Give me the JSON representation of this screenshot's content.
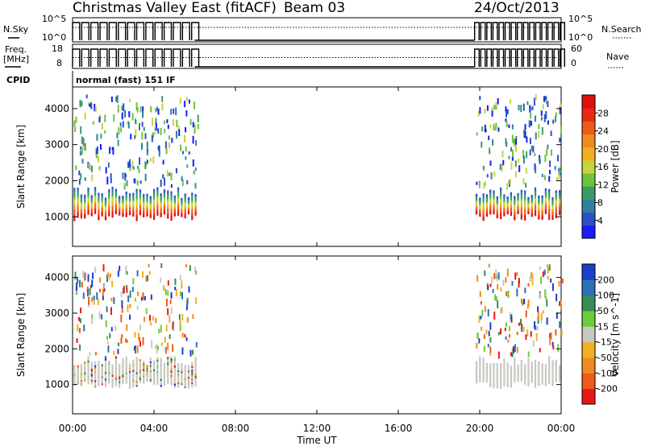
{
  "header": {
    "title": "Christmas Valley East (fitACF)",
    "beam": "Beam 03",
    "date": "24/Oct/2013"
  },
  "panels": {
    "nsky_label": "N.Sky",
    "nsky_tick_top": "10^5",
    "nsky_tick_bottom": "10^0",
    "nsearch_label": "N.Search",
    "nsearch_tick_top": "10^5",
    "nsearch_tick_bottom": "10^0",
    "freq_label_line1": "Freq.",
    "freq_label_line2": "[MHz]",
    "freq_tick_top": "18",
    "freq_tick_bottom": "8",
    "nave_label": "Nave",
    "nave_tick_top": "60",
    "nave_tick_bottom": "0",
    "cpid_label": "CPID",
    "cpid_value": "normal (fast) 151 IF"
  },
  "chart_data": [
    {
      "type": "heatmap",
      "name": "power",
      "ylabel": "Slant Range [km]",
      "ylim": [
        180,
        4600
      ],
      "yticks": [
        1000,
        2000,
        3000,
        4000
      ],
      "xlim": [
        0,
        24
      ],
      "colorbar": {
        "label": "Power [dB]",
        "range": [
          0,
          32
        ],
        "ticks": [
          "4",
          "8",
          "12",
          "16",
          "20",
          "24",
          "28"
        ],
        "colors": [
          "#1a1aff",
          "#2a4fc9",
          "#2f7fa0",
          "#3a9b6a",
          "#6fc23c",
          "#c8d23c",
          "#f0b020",
          "#f08a20",
          "#f05a18",
          "#e82a10",
          "#e01010"
        ]
      },
      "data_windows": [
        {
          "start": "00:00",
          "end": "06:00"
        },
        {
          "start": "19:45",
          "end": "24:00"
        }
      ]
    },
    {
      "type": "heatmap",
      "name": "velocity",
      "ylabel": "Slant Range [km]",
      "ylim": [
        180,
        4600
      ],
      "yticks": [
        1000,
        2000,
        3000,
        4000
      ],
      "xlim": [
        0,
        24
      ],
      "colorbar": {
        "label": "Velocity [m s^-1]",
        "ticks": [
          "200",
          "100",
          "50",
          "15",
          "-15",
          "-50",
          "-100",
          "-200"
        ],
        "colors": [
          "#1a3fc8",
          "#2a6fb8",
          "#3a8a5a",
          "#6ccc3c",
          "#c8c8c0",
          "#f0b020",
          "#f08a20",
          "#f05a18",
          "#e81818"
        ]
      }
    }
  ],
  "xaxis": {
    "label": "Time UT",
    "ticks": [
      "00:00",
      "04:00",
      "08:00",
      "12:00",
      "16:00",
      "20:00",
      "00:00"
    ]
  }
}
